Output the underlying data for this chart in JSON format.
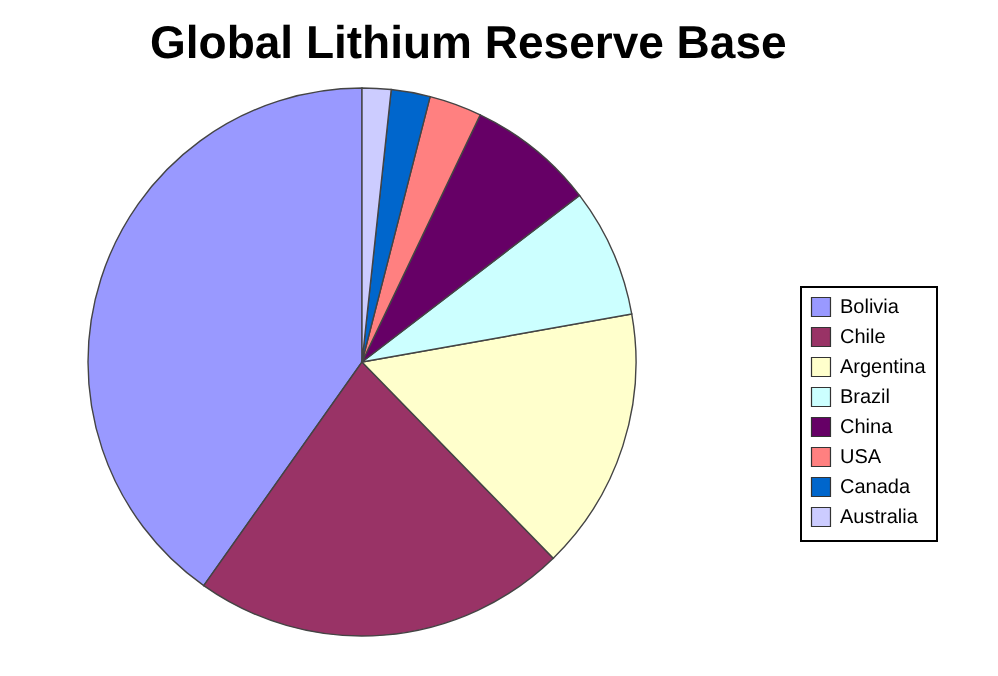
{
  "chart_data": {
    "type": "pie",
    "title": "Global Lithium Reserve Base",
    "categories": [
      "Bolivia",
      "Chile",
      "Argentina",
      "Brazil",
      "China",
      "USA",
      "Canada",
      "Australia"
    ],
    "values": [
      40.2,
      22.1,
      15.5,
      7.6,
      7.5,
      3.1,
      2.3,
      1.7
    ],
    "colors": [
      "#9999ff",
      "#993366",
      "#ffffcc",
      "#ccffff",
      "#660066",
      "#ff8080",
      "#0066cc",
      "#ccccff"
    ],
    "legend": "right"
  }
}
